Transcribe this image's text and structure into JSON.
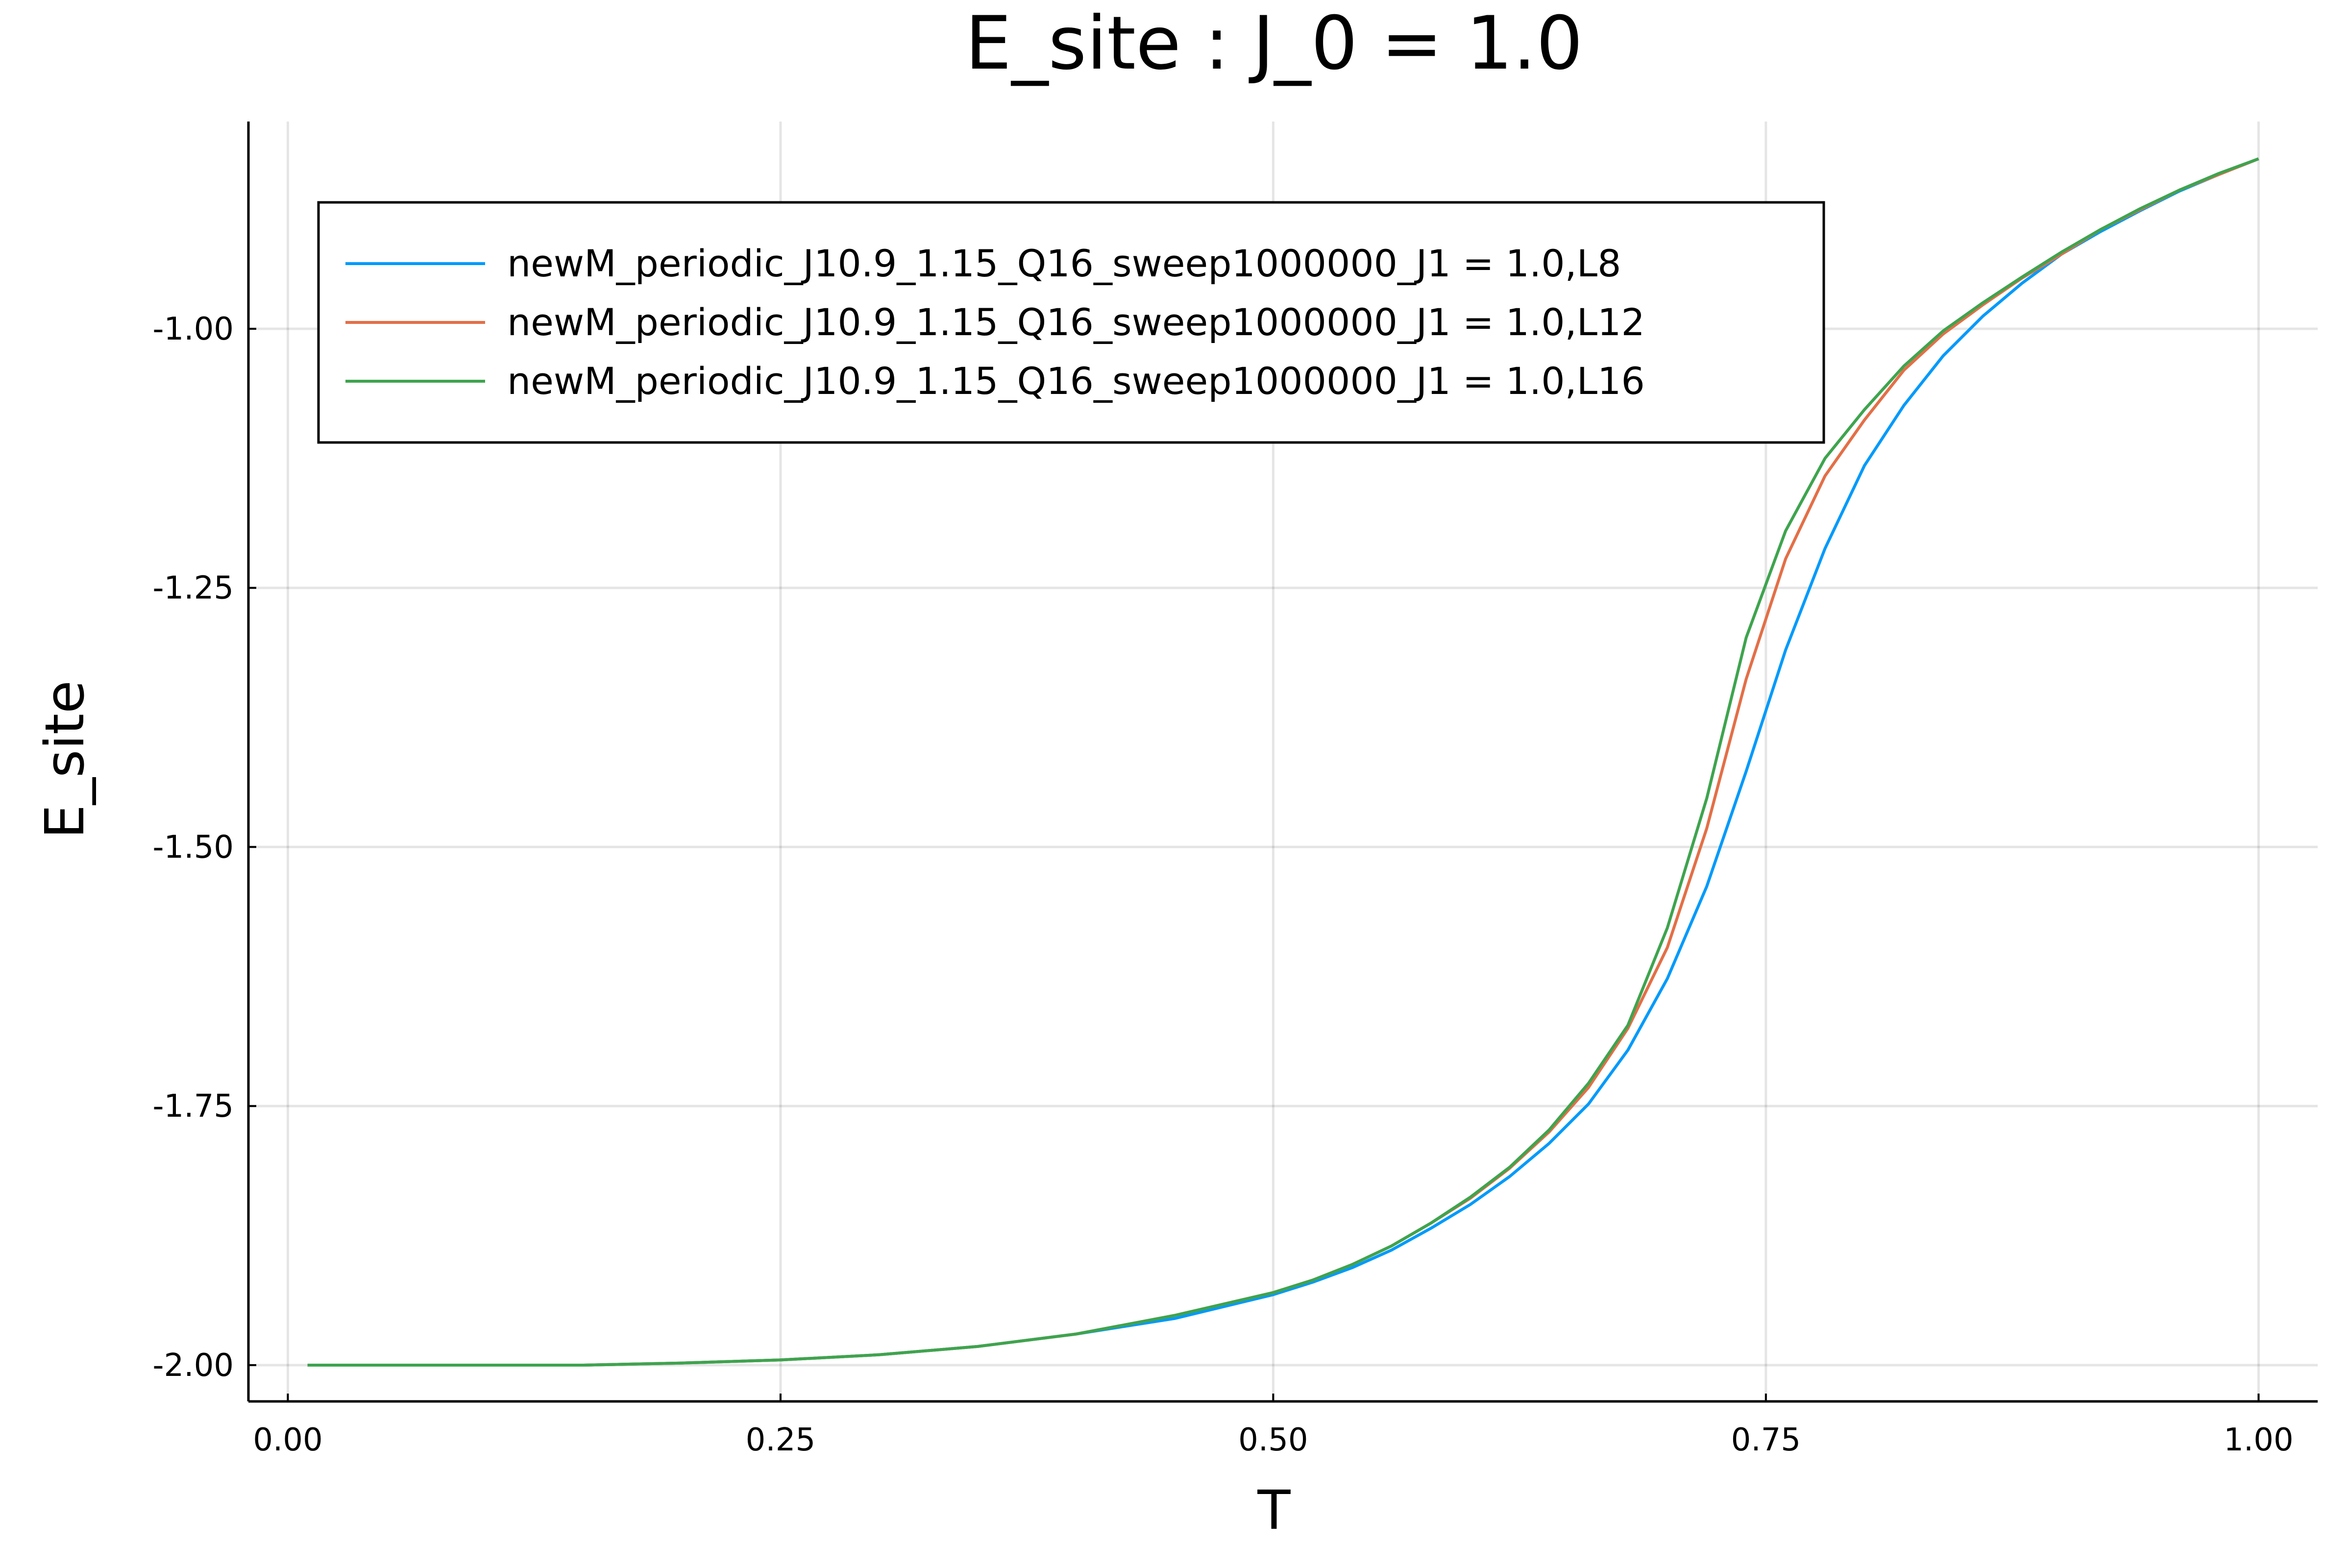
{
  "chart_data": {
    "type": "line",
    "title": "E_site : J_0 = 1.0",
    "xlabel": "T",
    "ylabel": "E_site",
    "xlim": [
      -0.02,
      1.03
    ],
    "ylim": [
      -2.035,
      -0.8
    ],
    "grid": true,
    "legend_position": "top-left",
    "x_ticks": [
      0.0,
      0.25,
      0.5,
      0.75,
      1.0
    ],
    "x_tick_labels": [
      "0.00",
      "0.25",
      "0.50",
      "0.75",
      "1.00"
    ],
    "y_ticks": [
      -2.0,
      -1.75,
      -1.5,
      -1.25,
      -1.0
    ],
    "y_tick_labels": [
      "-2.00",
      "-1.75",
      "-1.50",
      "-1.25",
      "-1.00"
    ],
    "x": [
      0.01,
      0.05,
      0.1,
      0.15,
      0.2,
      0.25,
      0.3,
      0.35,
      0.4,
      0.45,
      0.5,
      0.52,
      0.54,
      0.56,
      0.58,
      0.6,
      0.62,
      0.64,
      0.66,
      0.68,
      0.7,
      0.72,
      0.74,
      0.76,
      0.78,
      0.8,
      0.82,
      0.84,
      0.86,
      0.88,
      0.9,
      0.92,
      0.94,
      0.96,
      0.98,
      1.0
    ],
    "series": [
      {
        "name": "newM_periodic_J10.9_1.15_Q16_sweep1000000_J1 = 1.0,L8",
        "color": "#009AFA",
        "values": [
          -2.0,
          -2.0,
          -2.0,
          -2.0,
          -1.998,
          -1.995,
          -1.99,
          -1.982,
          -1.97,
          -1.955,
          -1.932,
          -1.92,
          -1.906,
          -1.889,
          -1.868,
          -1.845,
          -1.818,
          -1.786,
          -1.748,
          -1.696,
          -1.627,
          -1.538,
          -1.427,
          -1.31,
          -1.212,
          -1.132,
          -1.074,
          -1.026,
          -0.988,
          -0.956,
          -0.928,
          -0.906,
          -0.886,
          -0.867,
          -0.851,
          -0.836
        ]
      },
      {
        "name": "newM_periodic_J10.9_1.15_Q16_sweep1000000_J1 = 1.0,L12",
        "color": "#E36F47",
        "values": [
          -2.0,
          -2.0,
          -2.0,
          -2.0,
          -1.998,
          -1.995,
          -1.99,
          -1.982,
          -1.97,
          -1.952,
          -1.93,
          -1.918,
          -1.903,
          -1.885,
          -1.863,
          -1.839,
          -1.81,
          -1.775,
          -1.732,
          -1.675,
          -1.597,
          -1.482,
          -1.338,
          -1.222,
          -1.142,
          -1.088,
          -1.04,
          -1.005,
          -0.977,
          -0.951,
          -0.928,
          -0.904,
          -0.885,
          -0.866,
          -0.851,
          -0.836
        ]
      },
      {
        "name": "newM_periodic_J10.9_1.15_Q16_sweep1000000_J1 = 1.0,L16",
        "color": "#3EA44E",
        "values": [
          -2.0,
          -2.0,
          -2.0,
          -2.0,
          -1.998,
          -1.995,
          -1.99,
          -1.982,
          -1.97,
          -1.952,
          -1.93,
          -1.918,
          -1.903,
          -1.885,
          -1.863,
          -1.838,
          -1.809,
          -1.773,
          -1.728,
          -1.672,
          -1.578,
          -1.453,
          -1.298,
          -1.195,
          -1.125,
          -1.078,
          -1.036,
          -1.002,
          -0.975,
          -0.95,
          -0.926,
          -0.904,
          -0.884,
          -0.866,
          -0.85,
          -0.836
        ]
      }
    ]
  }
}
